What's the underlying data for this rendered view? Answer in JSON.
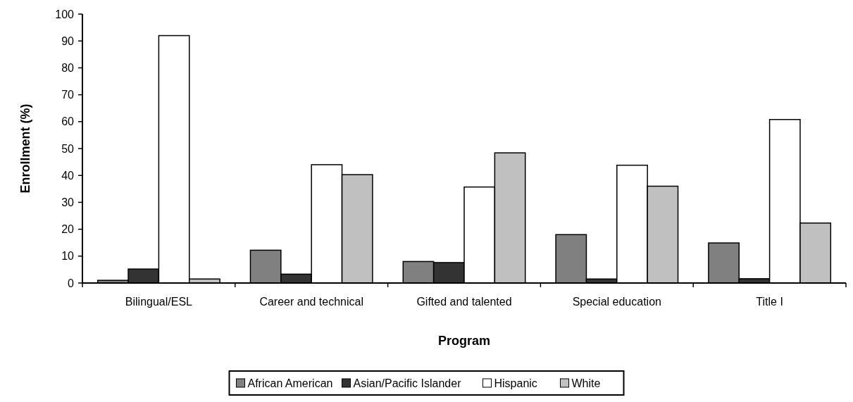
{
  "chart_data": {
    "type": "bar",
    "xlabel": "Program",
    "ylabel": "Enrollment (%)",
    "categories": [
      "Bilingual/ESL",
      "Career and technical",
      "Gifted and talented",
      "Special education",
      "Title I"
    ],
    "series": [
      {
        "name": "African American",
        "color": "#808080",
        "values": [
          1,
          12.2,
          8,
          18,
          14.9
        ]
      },
      {
        "name": "Asian/Pacific Islander",
        "color": "#333333",
        "values": [
          5.2,
          3.3,
          7.6,
          1.5,
          1.6
        ]
      },
      {
        "name": "Hispanic",
        "color": "#ffffff",
        "values": [
          92,
          44,
          35.7,
          43.8,
          60.8
        ]
      },
      {
        "name": "White",
        "color": "#c0c0c0",
        "values": [
          1.5,
          40.3,
          48.4,
          36,
          22.3
        ]
      }
    ],
    "ylim": [
      0,
      100
    ],
    "yticks": [
      0,
      10,
      20,
      30,
      40,
      50,
      60,
      70,
      80,
      90,
      100
    ],
    "grid": false,
    "legend": "bottom"
  }
}
